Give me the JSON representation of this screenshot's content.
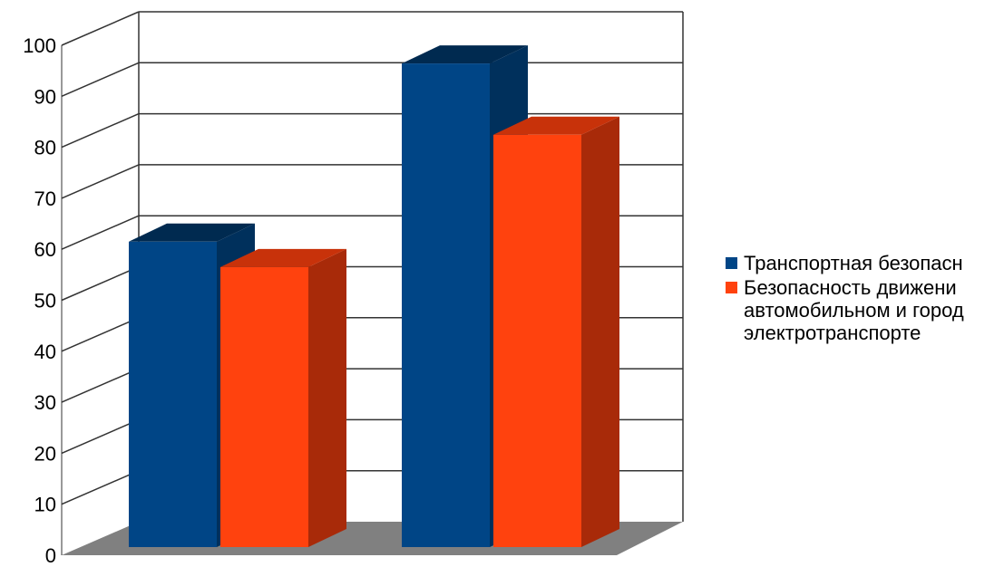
{
  "chart_data": {
    "type": "bar",
    "style": "3d-clustered-column",
    "categories": [
      "",
      ""
    ],
    "series": [
      {
        "name": "Транспортная безопасн",
        "color": "#004586",
        "values": [
          60,
          95
        ]
      },
      {
        "name": "Безопасность движени\nавтомобильном и город\nэлектротранспорте",
        "color": "#ff420e",
        "values": [
          55,
          81
        ]
      }
    ],
    "ylim": [
      0,
      100
    ],
    "yticks": [
      "0",
      "10",
      "20",
      "30",
      "40",
      "50",
      "60",
      "70",
      "80",
      "90",
      "100"
    ],
    "grid": true,
    "legend_position": "right",
    "title": "",
    "xlabel": "",
    "ylabel": "",
    "colors": {
      "floor": "#808080",
      "grid": "#333333",
      "series_1_top": "#002a50",
      "series_1_side": "#00305c",
      "series_2_top": "#c8320a",
      "series_2_side": "#a82a09"
    }
  }
}
